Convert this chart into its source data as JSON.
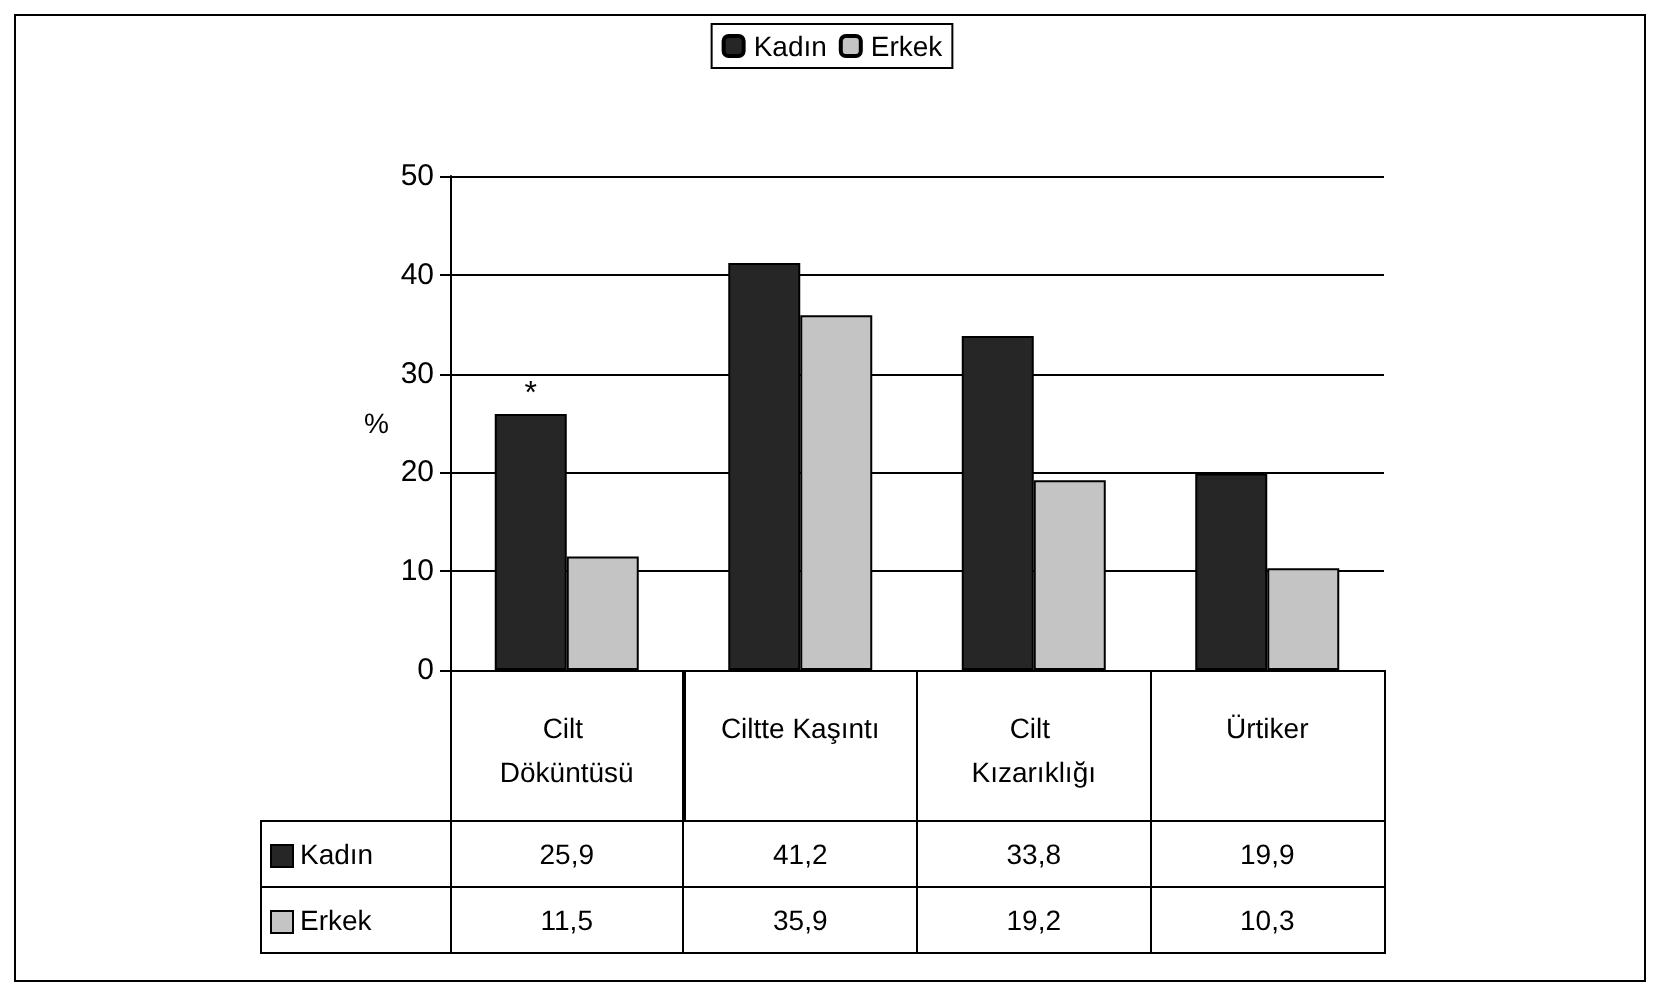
{
  "chart_data": {
    "type": "bar",
    "ylabel": "%",
    "categories": [
      "Cilt Döküntüsü",
      "Ciltte Kaşıntı",
      "Cilt Kızarıklığı",
      "Ürtiker"
    ],
    "series": [
      {
        "name": "Kadın",
        "color": "#262626",
        "values": [
          25.9,
          41.2,
          33.8,
          19.9
        ],
        "value_labels": [
          "25,9",
          "41,2",
          "33,8",
          "19,9"
        ]
      },
      {
        "name": "Erkek",
        "color": "#c4c4c4",
        "values": [
          11.5,
          35.9,
          19.2,
          10.3
        ],
        "value_labels": [
          "11,5",
          "35,9",
          "19,2",
          "10,3"
        ]
      }
    ],
    "ylim": [
      0,
      50
    ],
    "yticks": [
      0,
      10,
      20,
      30,
      40,
      50
    ],
    "grid": "y",
    "legend": "top",
    "annotations": [
      {
        "text": "*",
        "x": "Cilt Döküntüsü",
        "y": 25.9
      }
    ]
  }
}
